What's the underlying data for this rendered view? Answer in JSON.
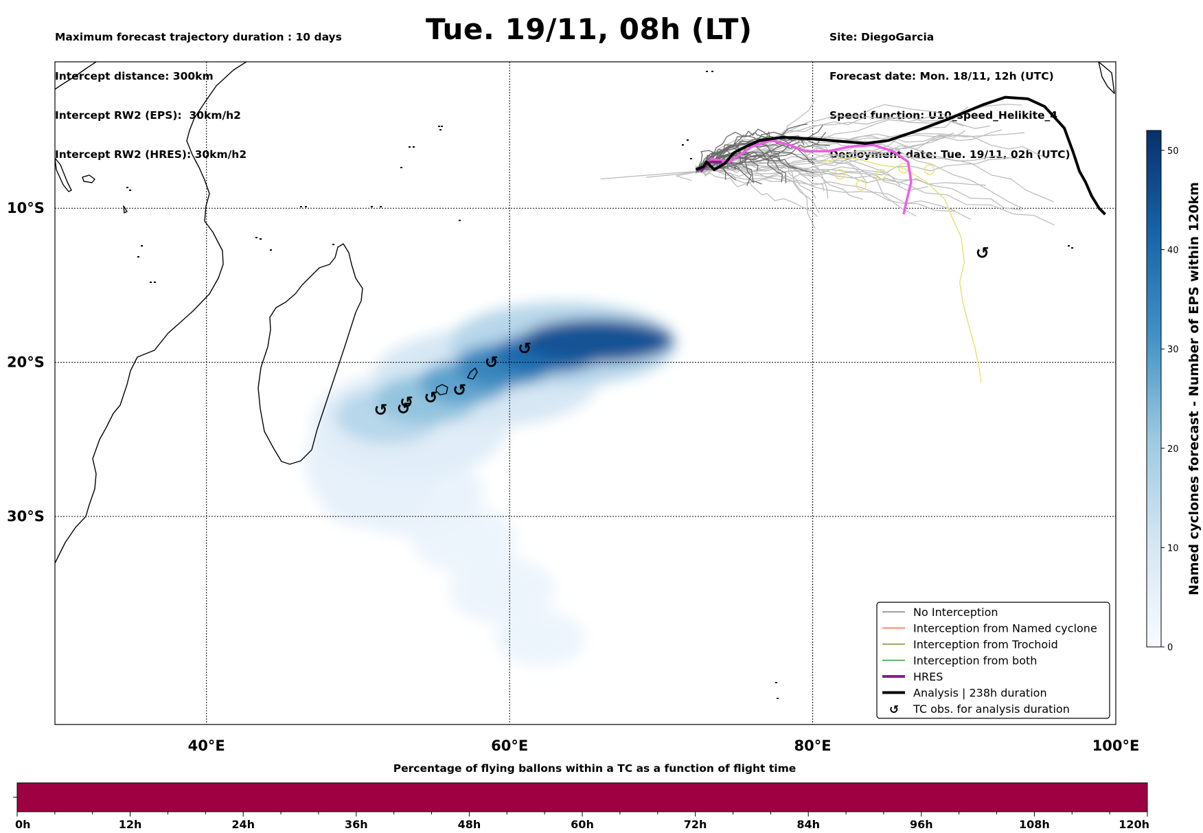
{
  "header": {
    "title": "Tue. 19/11, 08h (LT)",
    "left_lines": [
      "Maximum forecast trajectory duration : 10 days",
      "Intercept distance: 300km",
      "Intercept RW2 (EPS):  30km/h2",
      "Intercept RW2 (HRES): 30km/h2"
    ],
    "right_lines": [
      "Site: DiegoGarcia",
      "Forecast date: Mon. 18/11, 12h (UTC)",
      "Speed function: U10_speed_Helikite_4",
      "Deployment date: Tue. 19/11, 02h (UTC)"
    ]
  },
  "map": {
    "lon_labels": [
      "40°E",
      "60°E",
      "80°E",
      "100°E"
    ],
    "lat_labels": [
      "10°S",
      "20°S",
      "30°S"
    ],
    "lon_range": [
      30,
      100
    ],
    "lat_range": [
      -43.5,
      -0.5
    ],
    "tc_symbol": "↺",
    "tc_obs": [
      [
        51.5,
        -23.1
      ],
      [
        53,
        -23.0
      ],
      [
        53.2,
        -22.6
      ],
      [
        54.8,
        -22.3
      ],
      [
        56.7,
        -21.8
      ],
      [
        58.8,
        -20.0
      ],
      [
        61,
        -19.1
      ],
      [
        91.2,
        -12.9
      ]
    ],
    "analysis_track": [
      [
        72.3,
        -7.5
      ],
      [
        72.8,
        -7.3
      ],
      [
        73,
        -7.0
      ],
      [
        73.5,
        -7.5
      ],
      [
        74.2,
        -7.1
      ],
      [
        74.8,
        -6.4
      ],
      [
        75.6,
        -6.0
      ],
      [
        76.5,
        -5.6
      ],
      [
        78,
        -5.4
      ],
      [
        80,
        -5.5
      ],
      [
        83.5,
        -5.8
      ],
      [
        85,
        -5.6
      ],
      [
        86.8,
        -5.0
      ],
      [
        89,
        -4.2
      ],
      [
        91.2,
        -3.3
      ],
      [
        92.7,
        -2.8
      ],
      [
        94.2,
        -2.9
      ],
      [
        95.3,
        -3.4
      ],
      [
        96.6,
        -4.8
      ],
      [
        97.2,
        -6.4
      ],
      [
        97.6,
        -7.6
      ],
      [
        98,
        -8.3
      ],
      [
        98.4,
        -9.2
      ],
      [
        98.9,
        -10.0
      ],
      [
        99.3,
        -10.4
      ]
    ],
    "hres_track": [
      [
        72.7,
        -7.5
      ],
      [
        73.3,
        -6.8
      ],
      [
        74.5,
        -7.0
      ],
      [
        76,
        -6.0
      ],
      [
        77.3,
        -5.6
      ],
      [
        78.5,
        -5.9
      ],
      [
        79.5,
        -6.3
      ],
      [
        81,
        -6.3
      ],
      [
        82.5,
        -6.0
      ],
      [
        84,
        -5.9
      ],
      [
        85.3,
        -6.3
      ],
      [
        86.3,
        -7.0
      ],
      [
        86.5,
        -8.3
      ],
      [
        86.2,
        -9.5
      ],
      [
        86,
        -10.4
      ]
    ],
    "hres_thick_track": [
      [
        72.6,
        -7.6
      ],
      [
        73.2,
        -7.0
      ],
      [
        74,
        -7.0
      ]
    ],
    "yellow_track": [
      [
        80.5,
        -7.0
      ],
      [
        82.5,
        -6.7
      ],
      [
        84.5,
        -7.2
      ],
      [
        86,
        -7.4
      ],
      [
        87.5,
        -8.3
      ],
      [
        88.7,
        -9.4
      ],
      [
        89.2,
        -10.6
      ],
      [
        89.8,
        -11.9
      ],
      [
        90,
        -13.5
      ],
      [
        89.7,
        -14.8
      ],
      [
        89.9,
        -16.1
      ],
      [
        90.3,
        -17.6
      ],
      [
        90.7,
        -19.0
      ],
      [
        91,
        -20.5
      ],
      [
        91.1,
        -21.3
      ]
    ],
    "yellow_loops": [
      [
        81.8,
        -7.8
      ],
      [
        83.2,
        -8.5
      ],
      [
        84.5,
        -7.8
      ],
      [
        86,
        -7.4
      ],
      [
        87.7,
        -7.5
      ]
    ],
    "density_blobs": [
      [
        65.8,
        -18.6,
        5,
        1.4,
        45
      ],
      [
        62.5,
        -19.4,
        3.6,
        1.3,
        40
      ],
      [
        59.6,
        -20.2,
        3.2,
        1.4,
        34
      ],
      [
        57,
        -21.3,
        3,
        1.4,
        28
      ],
      [
        54.5,
        -22.4,
        3.4,
        1.6,
        22
      ],
      [
        52,
        -23.5,
        3.5,
        1.8,
        16
      ],
      [
        63.5,
        -18.8,
        7.5,
        2.7,
        16
      ],
      [
        58.5,
        -21.0,
        7.5,
        3.2,
        10
      ],
      [
        53.5,
        -24.0,
        6.5,
        3.5,
        7
      ],
      [
        51,
        -26.5,
        4.5,
        4,
        5
      ],
      [
        53.5,
        -28.5,
        4.8,
        2.8,
        4
      ],
      [
        57,
        -31.5,
        3.5,
        2.2,
        3
      ],
      [
        59.5,
        -34.8,
        3.5,
        2.2,
        3
      ],
      [
        62,
        -37.9,
        3,
        1.8,
        3
      ],
      [
        50,
        -28.5,
        2.6,
        2.2,
        4
      ]
    ]
  },
  "colorbar": {
    "label": "Named cyclones forecast - Number of EPS within 120km",
    "ticks": [
      "0",
      "10",
      "20",
      "30",
      "40",
      "50"
    ],
    "max": 52
  },
  "legend": {
    "items": [
      {
        "label": "No Interception",
        "color": "#7f7f7f",
        "style": "thin"
      },
      {
        "label": "Interception from Named cyclone",
        "color": "#ff6a3d",
        "style": "thin"
      },
      {
        "label": "Interception from Trochoid",
        "color": "#8a8a1a",
        "style": "thin"
      },
      {
        "label": "Interception from both",
        "color": "#2ca02c",
        "style": "thin"
      },
      {
        "label": "HRES",
        "color": "#8b1a8b",
        "style": "thick"
      },
      {
        "label": "Analysis | 238h duration",
        "color": "#000000",
        "style": "thick"
      },
      {
        "label": "TC obs. for analysis duration",
        "color": "#000000",
        "style": "symbol"
      }
    ]
  },
  "bottom_bar": {
    "title": "Percentage of flying ballons within a TC as a function of flight time",
    "ticks": [
      "0h",
      "12h",
      "24h",
      "36h",
      "48h",
      "60h",
      "72h",
      "84h",
      "96h",
      "108h",
      "120h"
    ],
    "fill_color": "#9e0142",
    "fill_fraction": 1.0
  },
  "colors": {
    "density_dark": "#08306b",
    "density_light": "#deebf7",
    "eps_gray": "#666666",
    "eps_light": "#bdbdbd",
    "hres_pink": "#ee5ce8",
    "yellow": "#e6e070"
  }
}
